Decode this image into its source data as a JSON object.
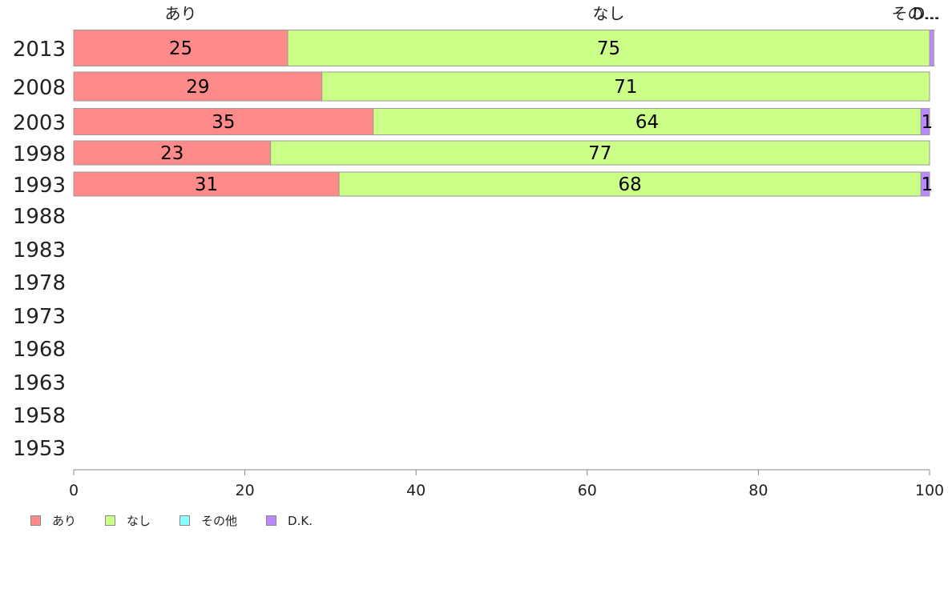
{
  "chart_data": {
    "type": "bar",
    "orientation": "horizontal",
    "stacked": true,
    "categories": [
      "2013",
      "2008",
      "2003",
      "1998",
      "1993",
      "1988",
      "1983",
      "1978",
      "1973",
      "1968",
      "1963",
      "1958",
      "1953"
    ],
    "series": [
      {
        "name": "あり",
        "color": "#FF8A8A",
        "values": [
          25,
          29,
          35,
          23,
          31,
          null,
          null,
          null,
          null,
          null,
          null,
          null,
          null
        ]
      },
      {
        "name": "なし",
        "color": "#CCFF88",
        "values": [
          75,
          71,
          64,
          77,
          68,
          null,
          null,
          null,
          null,
          null,
          null,
          null,
          null
        ]
      },
      {
        "name": "その他",
        "color": "#88FFFF",
        "values": [
          0,
          0,
          0,
          0,
          0,
          null,
          null,
          null,
          null,
          null,
          null,
          null,
          null
        ]
      },
      {
        "name": "D.K.",
        "color": "#BB88FF",
        "values": [
          0.5,
          0,
          1,
          0,
          1,
          null,
          null,
          null,
          null,
          null,
          null,
          null,
          null
        ]
      }
    ],
    "data_labels": [
      [
        "25",
        "75",
        "",
        ""
      ],
      [
        "29",
        "71",
        "",
        ""
      ],
      [
        "35",
        "64",
        "",
        "1"
      ],
      [
        "23",
        "77",
        "",
        ""
      ],
      [
        "31",
        "68",
        "",
        "1"
      ]
    ],
    "top_labels": [
      "あり",
      "なし",
      "その...",
      "D..."
    ],
    "xlim": [
      0,
      100
    ],
    "xticks": [
      0,
      20,
      40,
      60,
      80,
      100
    ],
    "grid": false,
    "legend_position": "bottom-left"
  }
}
